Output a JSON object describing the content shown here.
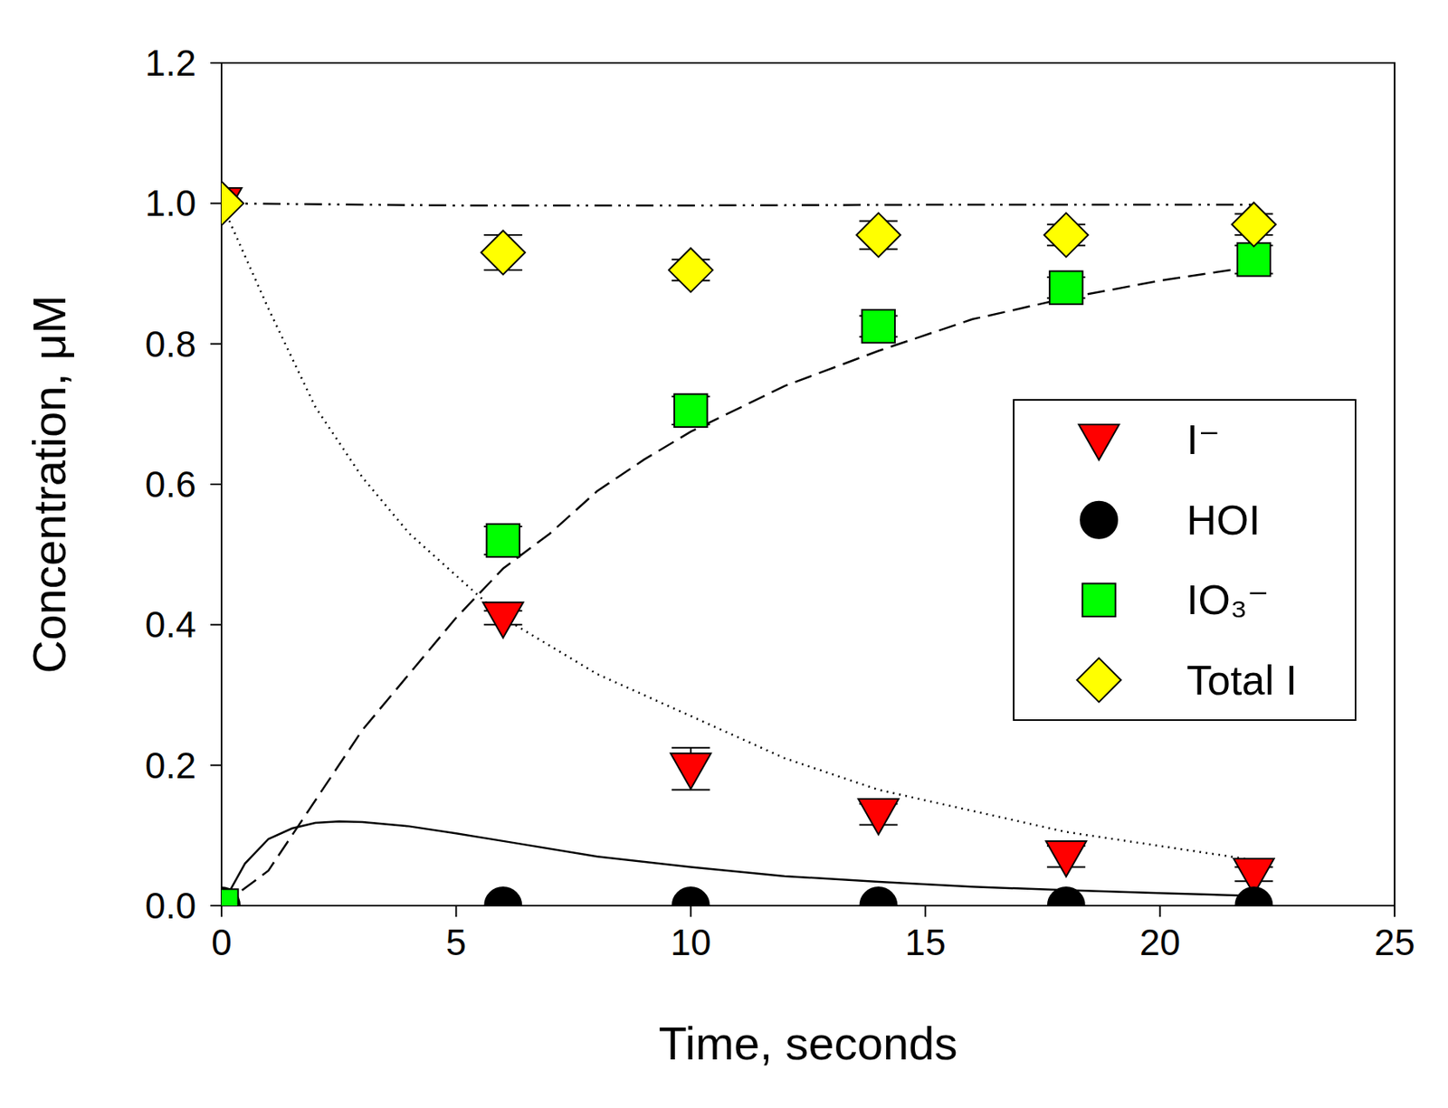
{
  "chart_data": {
    "type": "scatter",
    "x_label": "Time, seconds",
    "y_label": "Concentration, μM",
    "xlim": [
      0,
      25
    ],
    "ylim": [
      0,
      1.2
    ],
    "xticks": [
      0,
      5,
      10,
      15,
      20,
      25
    ],
    "yticks": [
      {
        "value": 0,
        "label": "0.0"
      },
      0.2,
      0.4,
      0.6,
      0.8,
      {
        "value": 1,
        "label": "1.0"
      },
      1.2
    ],
    "grid": false,
    "legend": "right",
    "series": [
      {
        "name": "I⁻",
        "type": "scatter",
        "color": "#ff0000",
        "marker": "triangle-down",
        "x": [
          0,
          6,
          10,
          14,
          18,
          22
        ],
        "values": [
          1.0,
          0.41,
          0.195,
          0.13,
          0.07,
          0.045
        ],
        "errors": [
          null,
          0.01,
          0.03,
          0.015,
          0.015,
          0.01
        ]
      },
      {
        "name": "HOI",
        "type": "scatter",
        "color": "#000000",
        "marker": "circle",
        "x": [
          0,
          6,
          10,
          14,
          18,
          22
        ],
        "values": [
          0,
          0,
          0,
          0,
          0,
          0
        ],
        "errors": [
          null,
          null,
          null,
          null,
          null,
          null
        ]
      },
      {
        "name": "IO₃⁻",
        "type": "scatter",
        "color": "#00ff00",
        "marker": "square",
        "x": [
          0,
          6,
          10,
          14,
          18,
          22
        ],
        "values": [
          0,
          0.52,
          0.705,
          0.825,
          0.88,
          0.92
        ],
        "errors": [
          null,
          0.02,
          0.02,
          0.015,
          0.015,
          0.02
        ]
      },
      {
        "name": "Total I",
        "type": "scatter",
        "color": "#ffff00",
        "marker": "diamond",
        "x": [
          0,
          6,
          10,
          14,
          18,
          22
        ],
        "values": [
          1.0,
          0.93,
          0.905,
          0.955,
          0.955,
          0.97
        ],
        "errors": [
          null,
          0.025,
          0.015,
          0.02,
          0.015,
          0.015
        ]
      },
      {
        "type": "line",
        "color": "#000000",
        "line_style": "dotted",
        "x": [
          0,
          1,
          2,
          3,
          4,
          5,
          6,
          7,
          8,
          9,
          10,
          12,
          14,
          16,
          18,
          20,
          22
        ],
        "values": [
          1.0,
          0.85,
          0.71,
          0.61,
          0.53,
          0.47,
          0.41,
          0.37,
          0.33,
          0.3,
          0.27,
          0.21,
          0.165,
          0.135,
          0.105,
          0.085,
          0.065
        ]
      },
      {
        "type": "line",
        "color": "#000000",
        "line_style": "solid",
        "x": [
          0,
          0.5,
          1,
          1.5,
          2,
          2.5,
          3,
          4,
          5,
          6,
          8,
          10,
          12,
          14,
          16,
          18,
          20,
          22
        ],
        "values": [
          0,
          0.06,
          0.095,
          0.11,
          0.118,
          0.12,
          0.119,
          0.113,
          0.103,
          0.092,
          0.07,
          0.055,
          0.042,
          0.034,
          0.027,
          0.022,
          0.018,
          0.014
        ]
      },
      {
        "type": "line",
        "color": "#000000",
        "line_style": "dashed",
        "x": [
          0,
          1,
          2,
          3,
          4,
          5,
          6,
          7,
          8,
          9,
          10,
          12,
          14,
          16,
          18,
          20,
          22
        ],
        "values": [
          0,
          0.05,
          0.15,
          0.25,
          0.33,
          0.41,
          0.48,
          0.53,
          0.59,
          0.635,
          0.675,
          0.74,
          0.79,
          0.835,
          0.865,
          0.89,
          0.91
        ]
      },
      {
        "type": "line",
        "color": "#000000",
        "line_style": "dashdotdot",
        "x": [
          0,
          5,
          10,
          15,
          20,
          22
        ],
        "values": [
          1.0,
          0.997,
          0.997,
          0.998,
          0.998,
          0.998
        ]
      }
    ]
  }
}
